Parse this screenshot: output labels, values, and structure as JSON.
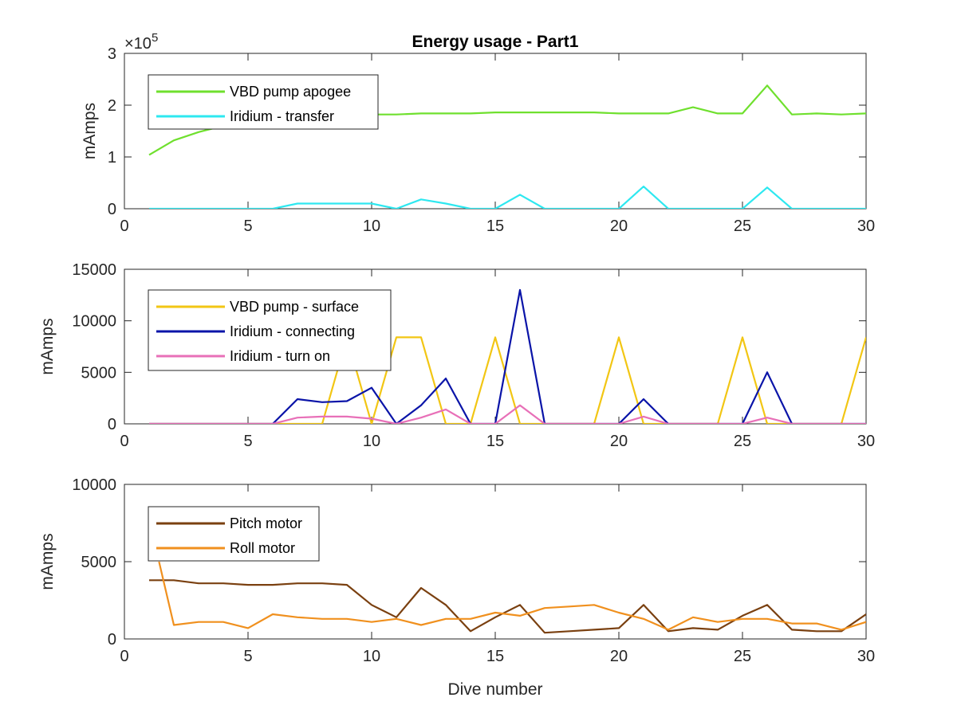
{
  "chart_data": [
    {
      "type": "line",
      "title": "Energy usage - Part1",
      "xlabel": "",
      "ylabel": "mAmps",
      "y_exponent_label": "×10^5",
      "y_exponent_base": "×10",
      "y_exponent_power": "5",
      "xlim": [
        0,
        30
      ],
      "ylim": [
        0,
        3
      ],
      "xticks": [
        0,
        5,
        10,
        15,
        20,
        25,
        30
      ],
      "yticks": [
        0,
        1,
        2,
        3
      ],
      "grid": false,
      "legend_position": "top-left",
      "x": [
        1,
        2,
        3,
        4,
        5,
        6,
        7,
        8,
        9,
        10,
        11,
        12,
        13,
        14,
        15,
        16,
        17,
        18,
        19,
        20,
        21,
        22,
        23,
        24,
        25,
        26,
        27,
        28,
        29,
        30
      ],
      "series": [
        {
          "name": "VBD pump apogee",
          "color": "#6fe02e",
          "values": [
            1.04,
            1.32,
            1.48,
            1.6,
            1.68,
            1.72,
            1.76,
            1.78,
            1.8,
            1.82,
            1.82,
            1.84,
            1.84,
            1.84,
            1.86,
            1.86,
            1.86,
            1.86,
            1.86,
            1.84,
            1.84,
            1.84,
            1.96,
            1.84,
            1.84,
            2.38,
            1.82,
            1.84,
            1.82,
            1.84
          ]
        },
        {
          "name": "Iridium - transfer",
          "color": "#2ee8f0",
          "values": [
            0,
            0,
            0,
            0,
            0,
            0,
            0.1,
            0.1,
            0.1,
            0.1,
            0,
            0.18,
            0.1,
            0,
            0,
            0.27,
            0,
            0,
            0,
            0,
            0.43,
            0,
            0,
            0,
            0,
            0.41,
            0,
            0,
            0,
            0
          ]
        }
      ]
    },
    {
      "type": "line",
      "title": "",
      "xlabel": "",
      "ylabel": "mAmps",
      "xlim": [
        0,
        30
      ],
      "ylim": [
        0,
        15000
      ],
      "xticks": [
        0,
        5,
        10,
        15,
        20,
        25,
        30
      ],
      "yticks": [
        0,
        5000,
        10000,
        15000
      ],
      "grid": false,
      "legend_position": "top-left",
      "x": [
        1,
        2,
        3,
        4,
        5,
        6,
        7,
        8,
        9,
        10,
        11,
        12,
        13,
        14,
        15,
        16,
        17,
        18,
        19,
        20,
        21,
        22,
        23,
        24,
        25,
        26,
        27,
        28,
        29,
        30
      ],
      "series": [
        {
          "name": "VBD pump - surface",
          "color": "#f2c614",
          "values": [
            0,
            0,
            0,
            0,
            0,
            0,
            0,
            0,
            8400,
            0,
            8400,
            8400,
            0,
            0,
            8400,
            0,
            0,
            0,
            0,
            8400,
            0,
            0,
            0,
            0,
            8400,
            0,
            0,
            0,
            0,
            8400
          ]
        },
        {
          "name": "Iridium - connecting",
          "color": "#0a14a8",
          "values": [
            0,
            0,
            0,
            0,
            0,
            0,
            2400,
            2100,
            2200,
            3500,
            0,
            1800,
            4400,
            0,
            0,
            13000,
            0,
            0,
            0,
            0,
            2400,
            0,
            0,
            0,
            0,
            5000,
            0,
            0,
            0,
            0
          ]
        },
        {
          "name": "Iridium - turn on",
          "color": "#e870b8",
          "values": [
            0,
            0,
            0,
            0,
            0,
            0,
            600,
            700,
            700,
            500,
            0,
            600,
            1400,
            0,
            0,
            1800,
            0,
            0,
            0,
            0,
            700,
            0,
            0,
            0,
            0,
            600,
            0,
            0,
            0,
            0
          ]
        }
      ]
    },
    {
      "type": "line",
      "title": "",
      "xlabel": "Dive number",
      "ylabel": "mAmps",
      "xlim": [
        0,
        30
      ],
      "ylim": [
        0,
        10000
      ],
      "xticks": [
        0,
        5,
        10,
        15,
        20,
        25,
        30
      ],
      "yticks": [
        0,
        5000,
        10000
      ],
      "grid": false,
      "legend_position": "top-left",
      "x": [
        1,
        2,
        3,
        4,
        5,
        6,
        7,
        8,
        9,
        10,
        11,
        12,
        13,
        14,
        15,
        16,
        17,
        18,
        19,
        20,
        21,
        22,
        23,
        24,
        25,
        26,
        27,
        28,
        29,
        30
      ],
      "series": [
        {
          "name": "Pitch motor",
          "color": "#7a4010",
          "x": [
            1,
            2,
            3,
            4,
            5,
            6,
            7,
            8,
            9,
            10,
            11,
            12,
            13,
            14,
            15,
            16,
            17,
            18,
            19,
            20,
            21,
            22,
            23,
            24,
            25,
            26,
            27,
            28,
            29,
            30
          ],
          "values": [
            3800,
            3800,
            3600,
            3600,
            3500,
            3500,
            3600,
            3600,
            3500,
            2200,
            1400,
            3300,
            2200,
            500,
            1400,
            2200,
            400,
            500,
            600,
            700,
            2200,
            500,
            700,
            600,
            1500,
            2200,
            600,
            500,
            500,
            1600
          ]
        },
        {
          "name": "Roll motor",
          "color": "#f0901e",
          "x": [
            1.4,
            2,
            3,
            4,
            5,
            6,
            7,
            8,
            9,
            10,
            11,
            12,
            13,
            14,
            15,
            16,
            17,
            18,
            19,
            20,
            21,
            22,
            23,
            24,
            25,
            26,
            27,
            28,
            29,
            30
          ],
          "values": [
            5000,
            900,
            1100,
            1100,
            700,
            1600,
            1400,
            1300,
            1300,
            1100,
            1300,
            900,
            1300,
            1300,
            1700,
            1500,
            2000,
            2100,
            2200,
            1700,
            1300,
            600,
            1400,
            1100,
            1300,
            1300,
            1000,
            1000,
            600,
            1100
          ]
        }
      ]
    }
  ]
}
